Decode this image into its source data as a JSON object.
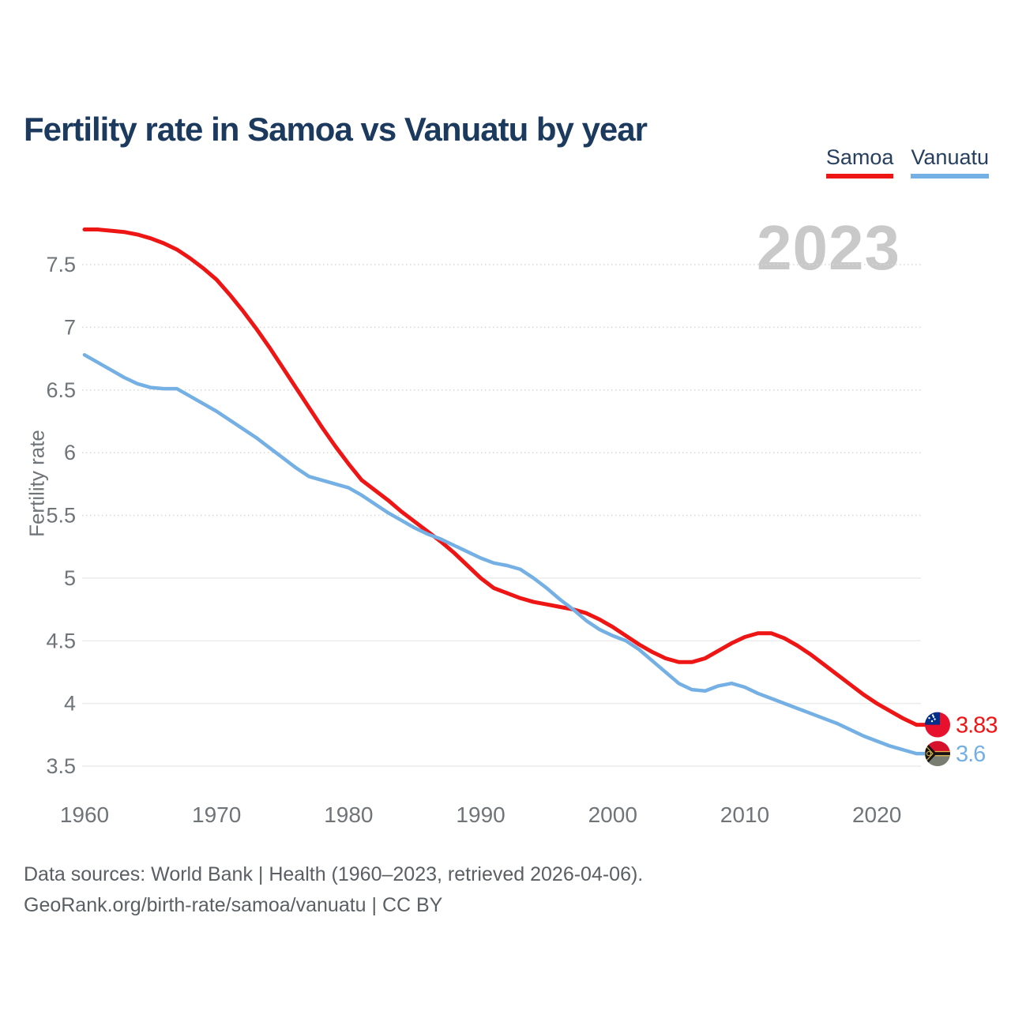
{
  "header": {
    "title": "Fertility rate in Samoa vs Vanuatu by year"
  },
  "legend": {
    "items": [
      {
        "label": "Samoa",
        "color": "#ee1515"
      },
      {
        "label": "Vanuatu",
        "color": "#74b0e4"
      }
    ]
  },
  "watermark": {
    "year": "2023"
  },
  "footer": {
    "line1": "Data sources: World Bank | Health (1960–2023, retrieved 2026-04-06).",
    "line2": "GeoRank.org/birth-rate/samoa/vanuatu | CC BY"
  },
  "flags": {
    "samoa": {
      "red": "#e8112d",
      "blue": "#003087",
      "star": "#ffffff"
    },
    "vanuatu": {
      "red": "#d6112c",
      "green": "#777d70",
      "black": "#141414",
      "yellow": "#e0b84c"
    }
  },
  "chart_data": {
    "type": "line",
    "title": "Fertility rate in Samoa vs Vanuatu by year",
    "xlabel": "",
    "ylabel": "Fertility rate",
    "grid": true,
    "legend_position": "top-right",
    "xlim": [
      1960,
      2023
    ],
    "ylim": [
      3.5,
      7.5
    ],
    "x_ticks": [
      1960,
      1970,
      1980,
      1990,
      2000,
      2010,
      2020
    ],
    "y_ticks": [
      7.5,
      7,
      6.5,
      6,
      5.5,
      5,
      4.5,
      4,
      3.5
    ],
    "x": [
      1960,
      1961,
      1962,
      1963,
      1964,
      1965,
      1966,
      1967,
      1968,
      1969,
      1970,
      1971,
      1972,
      1973,
      1974,
      1975,
      1976,
      1977,
      1978,
      1979,
      1980,
      1981,
      1982,
      1983,
      1984,
      1985,
      1986,
      1987,
      1988,
      1989,
      1990,
      1991,
      1992,
      1993,
      1994,
      1995,
      1996,
      1997,
      1998,
      1999,
      2000,
      2001,
      2002,
      2003,
      2004,
      2005,
      2006,
      2007,
      2008,
      2009,
      2010,
      2011,
      2012,
      2013,
      2014,
      2015,
      2016,
      2017,
      2018,
      2019,
      2020,
      2021,
      2022,
      2023
    ],
    "series": [
      {
        "name": "Samoa",
        "color": "#ee1515",
        "end_label": "3.83",
        "end_value": 3.83,
        "values": [
          7.78,
          7.78,
          7.77,
          7.76,
          7.74,
          7.71,
          7.67,
          7.62,
          7.55,
          7.47,
          7.38,
          7.26,
          7.13,
          6.99,
          6.84,
          6.68,
          6.52,
          6.36,
          6.2,
          6.05,
          5.91,
          5.78,
          5.7,
          5.62,
          5.53,
          5.45,
          5.37,
          5.29,
          5.2,
          5.1,
          5.0,
          4.92,
          4.88,
          4.84,
          4.81,
          4.79,
          4.77,
          4.75,
          4.72,
          4.67,
          4.61,
          4.54,
          4.47,
          4.41,
          4.36,
          4.33,
          4.33,
          4.36,
          4.42,
          4.48,
          4.53,
          4.56,
          4.56,
          4.52,
          4.46,
          4.39,
          4.31,
          4.23,
          4.15,
          4.07,
          4.0,
          3.94,
          3.88,
          3.83
        ]
      },
      {
        "name": "Vanuatu",
        "color": "#74b0e4",
        "end_label": "3.6",
        "end_value": 3.6,
        "values": [
          6.78,
          6.72,
          6.66,
          6.6,
          6.55,
          6.52,
          6.51,
          6.51,
          6.45,
          6.39,
          6.33,
          6.26,
          6.19,
          6.12,
          6.04,
          5.96,
          5.88,
          5.81,
          5.78,
          5.75,
          5.72,
          5.66,
          5.59,
          5.52,
          5.46,
          5.4,
          5.35,
          5.31,
          5.26,
          5.21,
          5.16,
          5.12,
          5.1,
          5.07,
          5.0,
          4.92,
          4.83,
          4.75,
          4.66,
          4.59,
          4.54,
          4.5,
          4.43,
          4.34,
          4.25,
          4.16,
          4.11,
          4.1,
          4.14,
          4.16,
          4.13,
          4.08,
          4.04,
          4.0,
          3.96,
          3.92,
          3.88,
          3.84,
          3.79,
          3.74,
          3.7,
          3.66,
          3.63,
          3.6
        ]
      }
    ]
  }
}
